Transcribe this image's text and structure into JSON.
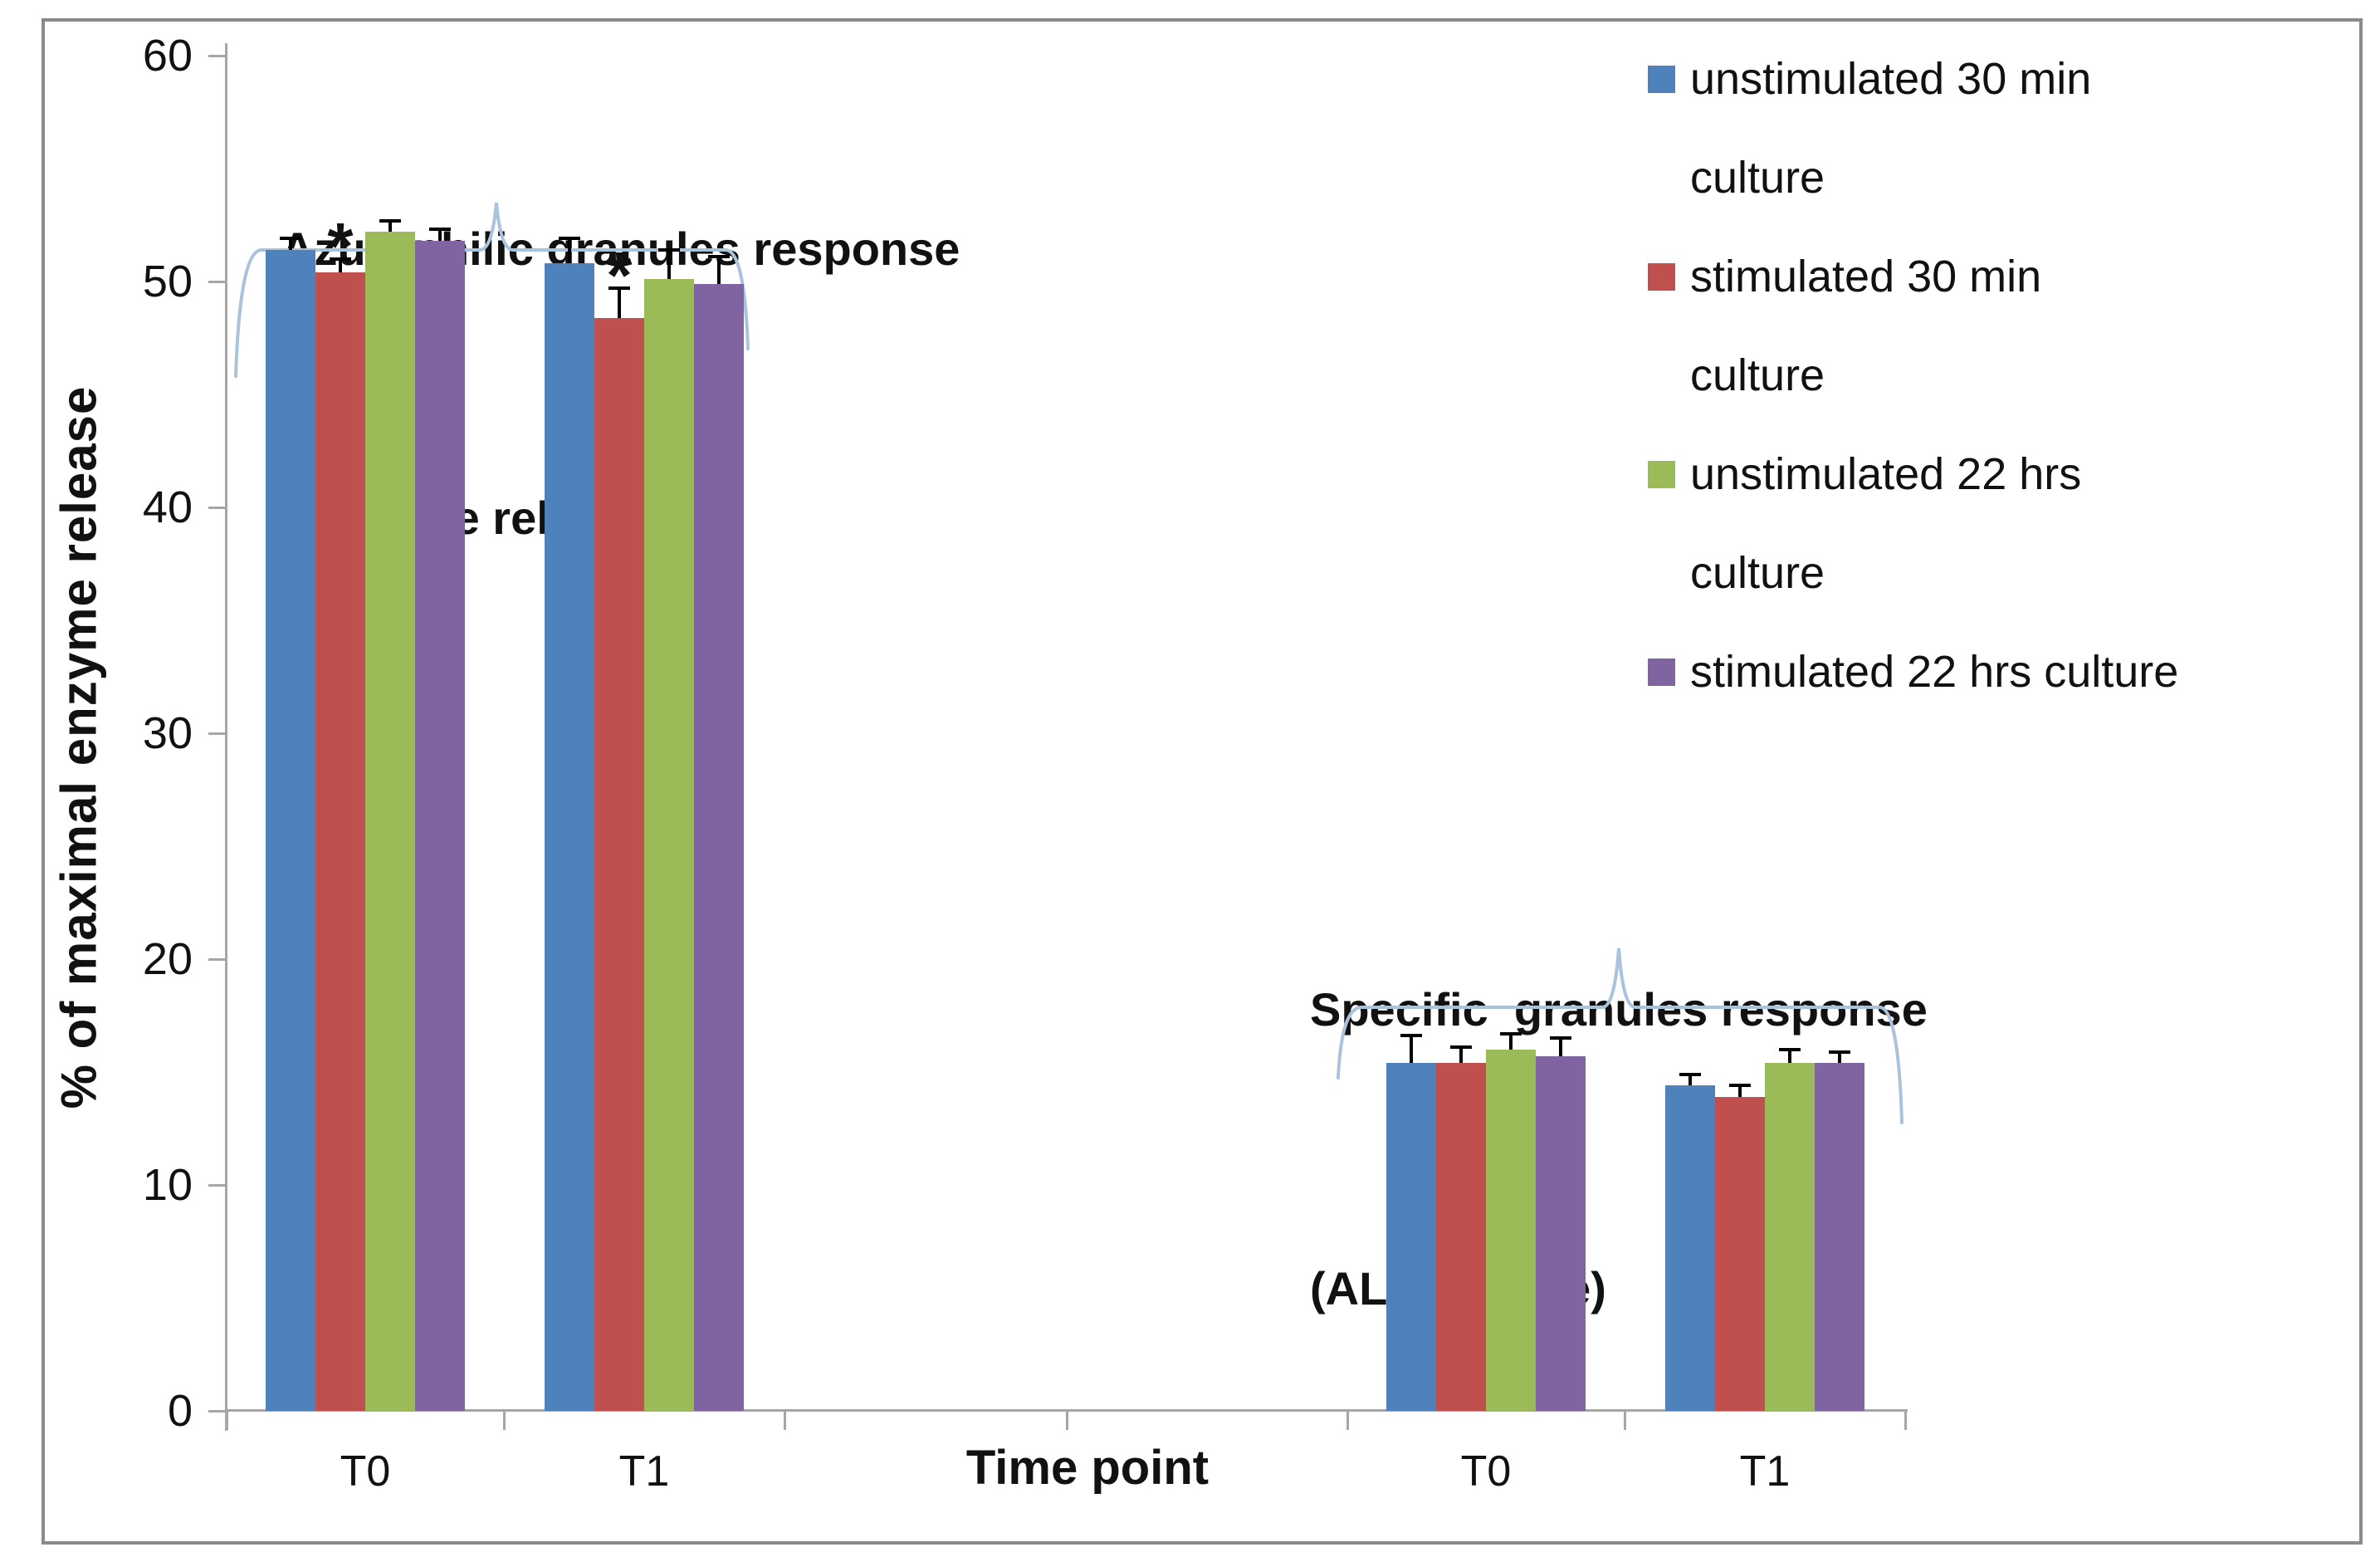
{
  "figure": {
    "y_axis": {
      "title": "% of maximal enzyme release"
    },
    "x_axis": {
      "title": "Time point",
      "labels": [
        "T0",
        "T1",
        "T0",
        "T1"
      ]
    },
    "legend": {
      "items": [
        {
          "label": "unstimulated 30 min culture",
          "lines": [
            "unstimulated 30 min",
            "culture"
          ],
          "color": "#4F81BD"
        },
        {
          "label": "stimulated 30 min culture",
          "lines": [
            "stimulated 30 min",
            "culture"
          ],
          "color": "#C0504D"
        },
        {
          "label": "unstimulated 22 hrs culture",
          "lines": [
            "unstimulated 22 hrs",
            "culture"
          ],
          "color": "#9BBB59"
        },
        {
          "label": "stimulated 22 hrs culture",
          "lines": [
            "stimulated 22 hrs culture"
          ],
          "color": "#8064A2"
        }
      ]
    },
    "annotations": {
      "elastase": {
        "line1": "Azurophilic granules response",
        "line2": "(elastase release)"
      },
      "alp": {
        "line1": "Specific  granules response",
        "line2": "(ALP release)"
      },
      "significance_symbol": "*"
    },
    "colors": {
      "axis": "#A6A6A6",
      "brace": "#A9C3DC",
      "error_bar": "#000000",
      "frame": "#8A8A8A",
      "text": "#111111"
    }
  },
  "chart_data": {
    "type": "bar",
    "title": "",
    "xlabel": "Time point",
    "ylabel": "% of maximal enzyme release",
    "ylim": [
      0,
      60
    ],
    "yticks": [
      0,
      10,
      20,
      30,
      40,
      50,
      60
    ],
    "categories": [
      "T0",
      "T1",
      "T0",
      "T1"
    ],
    "group_sections": [
      {
        "label": "Azurophilic granules response (elastase release)",
        "categories": [
          "T0",
          "T1"
        ]
      },
      {
        "label": "Specific granules response (ALP release)",
        "categories": [
          "T0",
          "T1"
        ]
      }
    ],
    "series": [
      {
        "name": "unstimulated 30 min culture",
        "color": "#4F81BD",
        "values": [
          51.4,
          50.8,
          15.4,
          14.4
        ],
        "errors": [
          0.5,
          1.1,
          1.2,
          0.5
        ]
      },
      {
        "name": "stimulated 30 min culture",
        "color": "#C0504D",
        "values": [
          50.4,
          48.4,
          15.4,
          13.9
        ],
        "errors": [
          0.6,
          1.3,
          0.7,
          0.5
        ]
      },
      {
        "name": "unstimulated 22 hrs culture",
        "color": "#9BBB59",
        "values": [
          52.2,
          50.1,
          16.0,
          15.4
        ],
        "errors": [
          0.5,
          1.3,
          0.7,
          0.6
        ]
      },
      {
        "name": "stimulated 22 hrs culture",
        "color": "#8064A2",
        "values": [
          51.8,
          49.9,
          15.7,
          15.4
        ],
        "errors": [
          0.5,
          1.2,
          0.8,
          0.5
        ]
      }
    ],
    "significance": [
      {
        "category_index": 0,
        "series_index": 1,
        "symbol": "*"
      },
      {
        "category_index": 1,
        "series_index": 1,
        "symbol": "*"
      }
    ],
    "legend_position": "top-right",
    "grid": false
  }
}
